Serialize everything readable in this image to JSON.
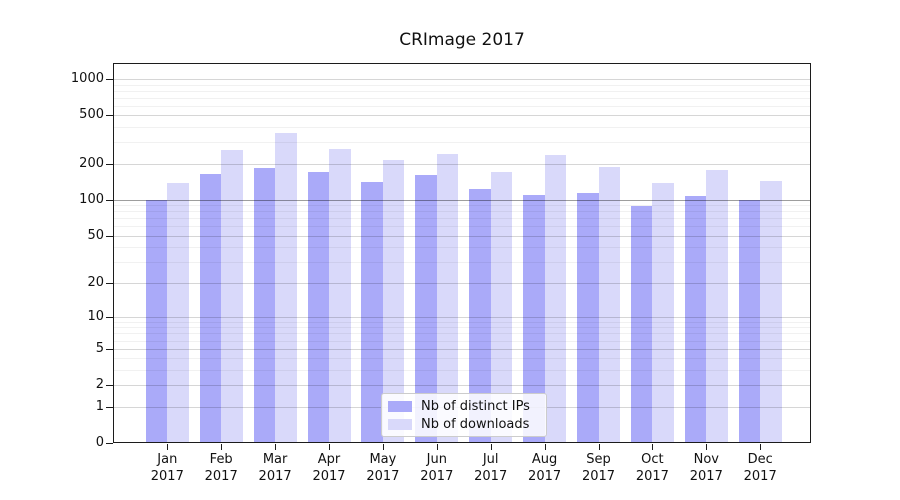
{
  "chart_data": {
    "type": "bar",
    "title": "CRImage 2017",
    "categories": [
      "Jan",
      "Feb",
      "Mar",
      "Apr",
      "May",
      "Jun",
      "Jul",
      "Aug",
      "Sep",
      "Oct",
      "Nov",
      "Dec"
    ],
    "year_label": "2017",
    "series": [
      {
        "name": "Nb of distinct IPs",
        "color": "#aaaaf9",
        "values": [
          100,
          164,
          184,
          170,
          140,
          161,
          124,
          109,
          115,
          88,
          107,
          100
        ]
      },
      {
        "name": "Nb of downloads",
        "color": "#d9d9fa",
        "values": [
          139,
          261,
          359,
          265,
          214,
          238,
          171,
          237,
          187,
          137,
          177,
          144
        ]
      }
    ],
    "yscale": "log1p",
    "ylim": [
      0,
      1350
    ],
    "yticks": [
      0,
      1,
      2,
      5,
      10,
      20,
      50,
      100,
      200,
      500,
      1000
    ],
    "minor_yticks": [
      3,
      4,
      6,
      7,
      8,
      9,
      30,
      40,
      60,
      70,
      80,
      90,
      300,
      400,
      600,
      700,
      800,
      900
    ],
    "grid": true,
    "legend_position": "bottom-center",
    "frame_color": "#1c1c1c"
  }
}
